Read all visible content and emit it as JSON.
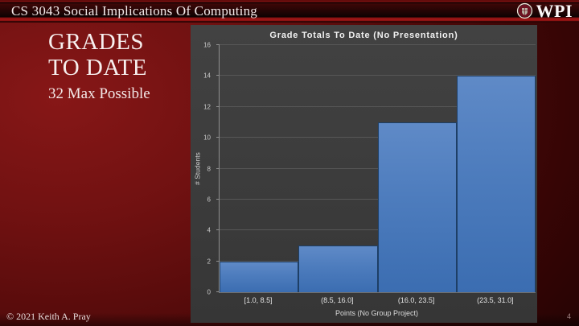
{
  "header": {
    "title": "CS 3043 Social Implications Of Computing",
    "logo_text": "WPI"
  },
  "content": {
    "heading": "GRADES\nTO DATE",
    "subtitle": "32 Max Possible"
  },
  "footer": {
    "copyright": "© 2021 Keith A. Pray",
    "page_number": "4"
  },
  "colors": {
    "slide_background_red": "#701111",
    "chart_panel_gray": "#3d3d3d",
    "bar_fill_top": "#5f8ac7",
    "bar_fill_bottom": "#3b6db1",
    "bar_border": "#1e3f66",
    "gridline": "#575757"
  },
  "chart_data": {
    "type": "bar",
    "title": "Grade Totals To Date (No Presentation)",
    "categories": [
      "[1.0, 8.5]",
      "(8.5, 16.0]",
      "(16.0, 23.5]",
      "(23.5, 31.0]"
    ],
    "values": [
      2,
      3,
      11,
      14
    ],
    "xlabel": "Points (No Group Project)",
    "ylabel": "# Students",
    "ylim": [
      0,
      16
    ],
    "ytick_step": 2,
    "grid": true,
    "legend": false
  }
}
